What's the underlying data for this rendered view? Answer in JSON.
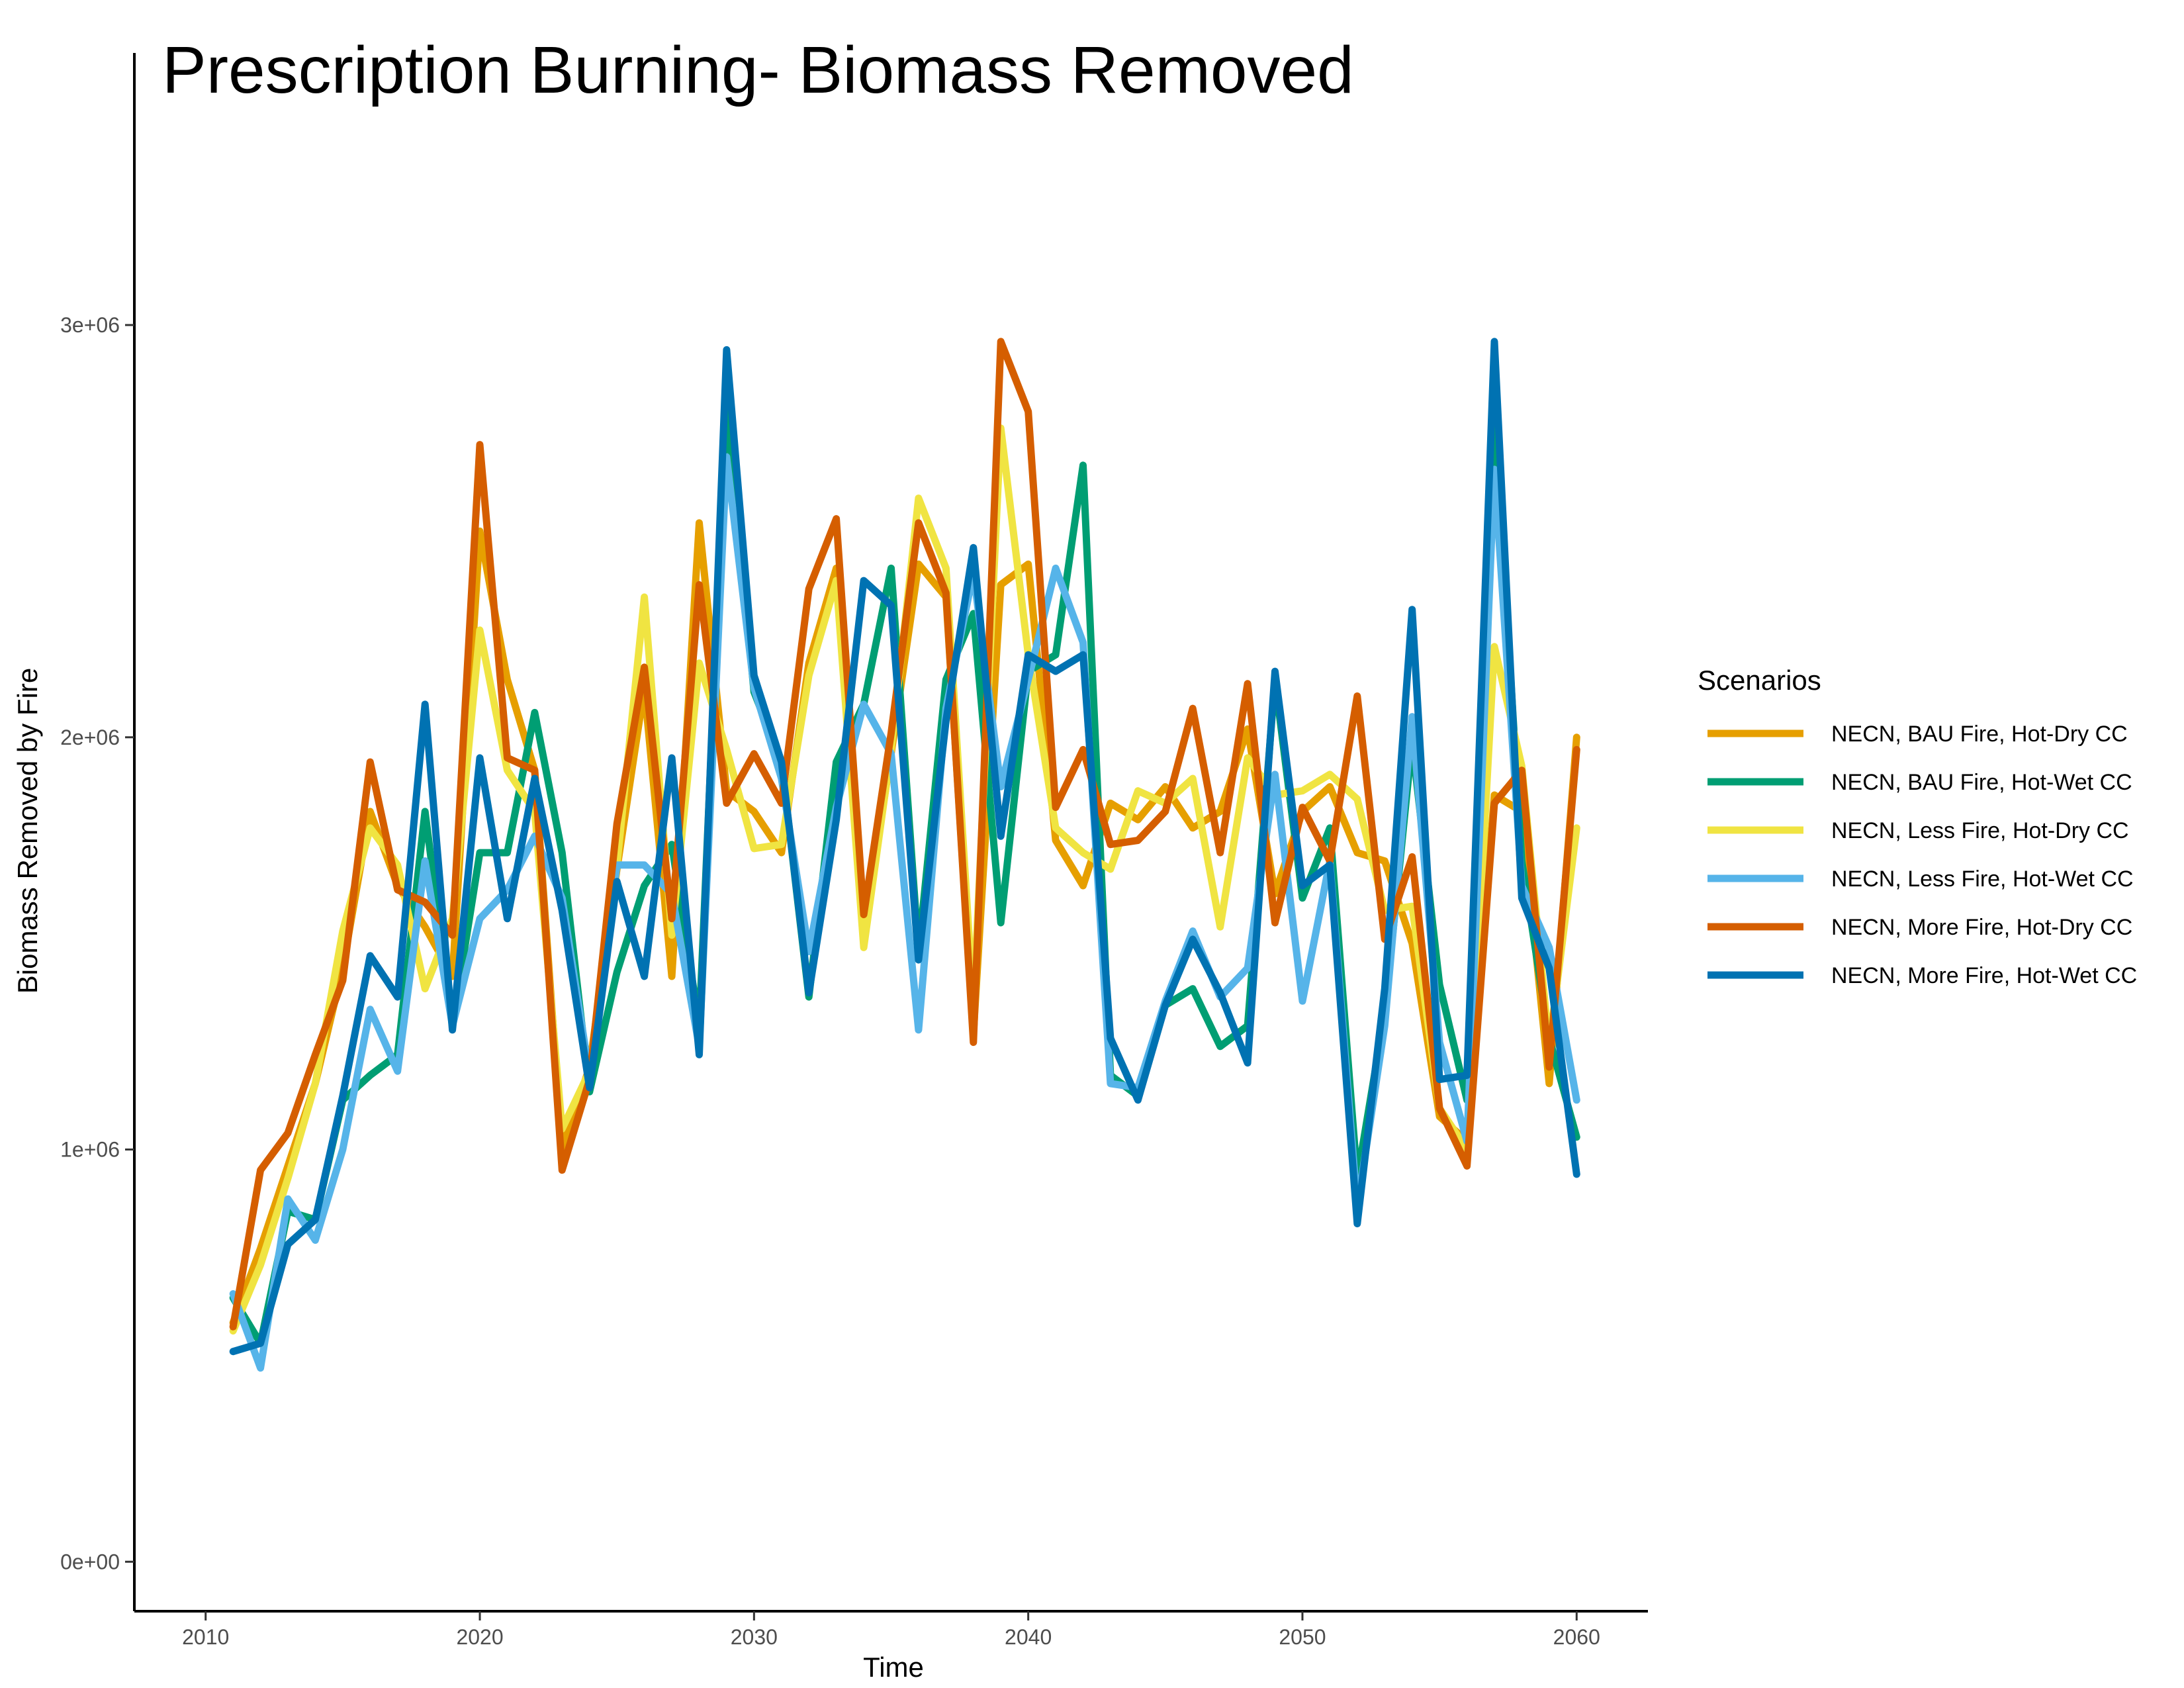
{
  "chart_data": {
    "type": "line",
    "title": "Prescription Burning- Biomass Removed",
    "xlabel": "Time",
    "ylabel": "Biomass Removed by Fire",
    "xlim": [
      2007.4,
      2062.6
    ],
    "ylim": [
      -120000,
      3660000
    ],
    "x_ticks": [
      2010,
      2020,
      2030,
      2040,
      2050,
      2060
    ],
    "y_ticks": [
      0,
      1000000,
      2000000,
      3000000
    ],
    "y_tick_labels": [
      "0e+00",
      "1e+06",
      "2e+06",
      "3e+06"
    ],
    "grid": false,
    "legend": {
      "title": "Scenarios",
      "position": "right"
    },
    "x": [
      2011,
      2012,
      2013,
      2014,
      2015,
      2016,
      2017,
      2018,
      2019,
      2020,
      2021,
      2022,
      2023,
      2024,
      2025,
      2026,
      2027,
      2028,
      2029,
      2030,
      2031,
      2032,
      2033,
      2034,
      2035,
      2036,
      2037,
      2038,
      2039,
      2040,
      2041,
      2042,
      2043,
      2044,
      2045,
      2046,
      2047,
      2048,
      2049,
      2050,
      2051,
      2052,
      2053,
      2054,
      2055,
      2056,
      2057,
      2058,
      2059,
      2060
    ],
    "series": [
      {
        "name": "NECN, BAU Fire, Hot-Dry CC",
        "color": "#E69F00",
        "values": [
          580000,
          760000,
          960000,
          1160000,
          1440000,
          1820000,
          1640000,
          1540000,
          1420000,
          2500000,
          2140000,
          1920000,
          1000000,
          1200000,
          1680000,
          2120000,
          1420000,
          2520000,
          1870000,
          1820000,
          1720000,
          2180000,
          2410000,
          1530000,
          1960000,
          2420000,
          2340000,
          1280000,
          2370000,
          2420000,
          1750000,
          1640000,
          1840000,
          1800000,
          1880000,
          1780000,
          1820000,
          2020000,
          1620000,
          1820000,
          1880000,
          1720000,
          1700000,
          1500000,
          1080000,
          1020000,
          1860000,
          1820000,
          1160000,
          2000000
        ]
      },
      {
        "name": "NECN, BAU Fire, Hot-Wet CC",
        "color": "#009E73",
        "values": [
          640000,
          530000,
          850000,
          830000,
          1120000,
          1180000,
          1230000,
          1820000,
          1300000,
          1720000,
          1720000,
          2060000,
          1720000,
          1140000,
          1430000,
          1640000,
          1740000,
          1300000,
          2820000,
          2110000,
          1940000,
          1370000,
          1940000,
          2080000,
          2410000,
          1480000,
          2140000,
          2300000,
          1550000,
          2160000,
          2200000,
          2660000,
          1180000,
          1130000,
          1350000,
          1390000,
          1250000,
          1300000,
          2140000,
          1610000,
          1780000,
          930000,
          1330000,
          1990000,
          1400000,
          1120000,
          2800000,
          1700000,
          1270000,
          1030000
        ]
      },
      {
        "name": "NECN, Less Fire, Hot-Dry CC",
        "color": "#F0E442",
        "values": [
          560000,
          720000,
          930000,
          1160000,
          1530000,
          1780000,
          1690000,
          1390000,
          1560000,
          2260000,
          1920000,
          1820000,
          1050000,
          1190000,
          1690000,
          2340000,
          1520000,
          2180000,
          1970000,
          1730000,
          1740000,
          2150000,
          2380000,
          1490000,
          1970000,
          2580000,
          2410000,
          1350000,
          2750000,
          2200000,
          1780000,
          1720000,
          1680000,
          1870000,
          1840000,
          1900000,
          1540000,
          1950000,
          1860000,
          1870000,
          1910000,
          1850000,
          1580000,
          1590000,
          1100000,
          1000000,
          2220000,
          1930000,
          1250000,
          1780000
        ]
      },
      {
        "name": "NECN, Less Fire, Hot-Wet CC",
        "color": "#56B4E9",
        "values": [
          650000,
          470000,
          880000,
          780000,
          1000000,
          1340000,
          1190000,
          1700000,
          1300000,
          1560000,
          1630000,
          1760000,
          1610000,
          1180000,
          1690000,
          1690000,
          1620000,
          1250000,
          2680000,
          2120000,
          1900000,
          1480000,
          1830000,
          2080000,
          1960000,
          1290000,
          2070000,
          2400000,
          1880000,
          2140000,
          2410000,
          2230000,
          1160000,
          1150000,
          1360000,
          1530000,
          1370000,
          1440000,
          1910000,
          1360000,
          1700000,
          860000,
          1300000,
          2050000,
          1260000,
          1020000,
          2650000,
          1640000,
          1490000,
          1120000
        ]
      },
      {
        "name": "NECN, More Fire, Hot-Dry CC",
        "color": "#D55E00",
        "values": [
          570000,
          950000,
          1040000,
          1230000,
          1410000,
          1940000,
          1630000,
          1600000,
          1520000,
          2710000,
          1950000,
          1920000,
          950000,
          1170000,
          1790000,
          2170000,
          1560000,
          2370000,
          1840000,
          1960000,
          1840000,
          2360000,
          2530000,
          1570000,
          2010000,
          2520000,
          2350000,
          1260000,
          2960000,
          2790000,
          1830000,
          1970000,
          1740000,
          1750000,
          1820000,
          2070000,
          1720000,
          2130000,
          1550000,
          1830000,
          1700000,
          2100000,
          1510000,
          1710000,
          1100000,
          960000,
          1840000,
          1920000,
          1200000,
          1970000
        ]
      },
      {
        "name": "NECN, More Fire, Hot-Wet CC",
        "color": "#0072B2",
        "values": [
          510000,
          530000,
          770000,
          830000,
          1130000,
          1470000,
          1370000,
          2080000,
          1290000,
          1950000,
          1560000,
          1900000,
          1580000,
          1150000,
          1650000,
          1420000,
          1950000,
          1230000,
          2940000,
          2150000,
          1940000,
          1380000,
          1800000,
          2380000,
          2320000,
          1460000,
          2040000,
          2460000,
          1760000,
          2200000,
          2160000,
          2200000,
          1270000,
          1120000,
          1350000,
          1510000,
          1380000,
          1210000,
          2160000,
          1640000,
          1690000,
          820000,
          1390000,
          2310000,
          1170000,
          1180000,
          2960000,
          1610000,
          1440000,
          940000
        ]
      }
    ]
  }
}
